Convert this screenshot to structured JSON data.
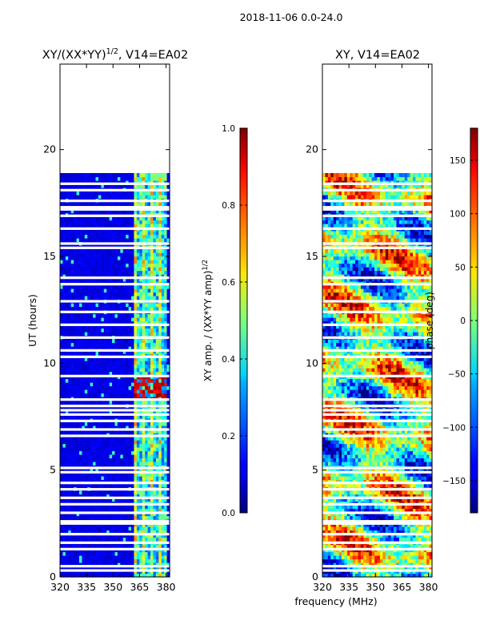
{
  "figure": {
    "suptitle": "2018-11-06 0.0-24.0",
    "xlabel": "frequency (MHz)"
  },
  "chart_data": [
    {
      "type": "heatmap",
      "title_base": "XY/(XX*YY)",
      "title_exp": "1/2",
      "title_suffix": ", V14=EA02",
      "ylabel": "UT (hours)",
      "xlabel": "frequency (MHz)",
      "xlim": [
        320,
        382
      ],
      "ylim": [
        0,
        24
      ],
      "x_ticks": [
        320,
        335,
        350,
        365,
        380
      ],
      "y_ticks": [
        0,
        5,
        10,
        15,
        20
      ],
      "data_time_range": [
        0,
        18.9
      ],
      "rfi_band_MHz": [
        362,
        380
      ],
      "flare_window_hours": [
        8.2,
        9.5
      ],
      "colorbar": {
        "label_base": "XY amp. / (XX*YY amp)",
        "label_exp": "1/2",
        "range": [
          0.0,
          1.0
        ],
        "ticks": [
          "0.0",
          "0.2",
          "0.4",
          "0.6",
          "0.8",
          "1.0"
        ]
      }
    },
    {
      "type": "heatmap",
      "title": "XY, V14=EA02",
      "xlim": [
        320,
        382
      ],
      "ylim": [
        0,
        24
      ],
      "x_ticks": [
        320,
        335,
        350,
        365,
        380
      ],
      "y_ticks": [
        0,
        5,
        10,
        15,
        20
      ],
      "data_time_range": [
        0,
        18.9
      ],
      "colorbar": {
        "label": "phase (deg)",
        "range": [
          -180,
          180
        ],
        "ticks": [
          "150",
          "100",
          "50",
          "0",
          "−50",
          "−100",
          "−150"
        ]
      }
    }
  ],
  "gaps_hours": [
    18.4,
    18.1,
    17.6,
    17.3,
    17.2,
    16.9,
    16.3,
    15.6,
    15.4,
    14.0,
    13.7,
    12.9,
    12.4,
    11.8,
    11.2,
    10.6,
    10.3,
    9.4,
    8.3,
    8.0,
    7.8,
    7.6,
    7.3,
    6.9,
    6.6,
    5.1,
    4.9,
    4.4,
    4.1,
    3.7,
    3.4,
    3.0,
    2.6,
    2.5,
    2.0,
    1.6,
    1.3,
    0.5,
    0.3
  ]
}
